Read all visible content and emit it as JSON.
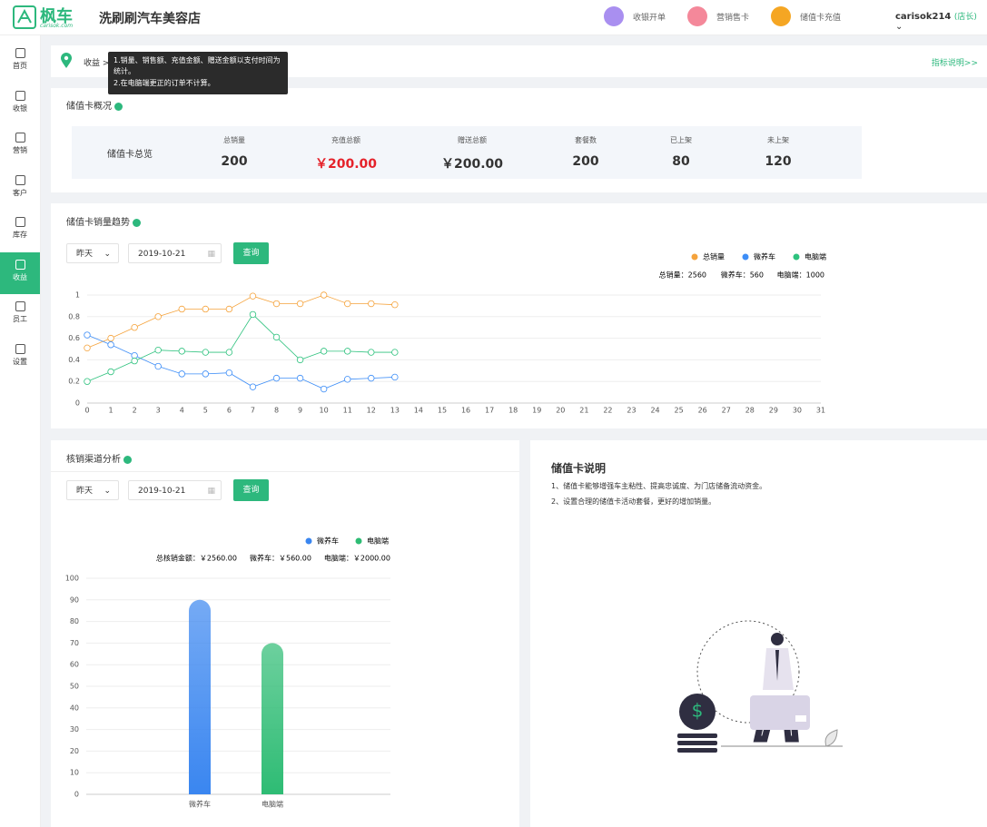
{
  "header": {
    "logo": "枫车",
    "logo_sub": "carisok.com",
    "store": "洗刷刷汽车美容店",
    "actions": [
      "收银开单",
      "营销售卡",
      "储值卡充值"
    ],
    "user": "carisok214",
    "role": "(店长)"
  },
  "sidebar": [
    "首页",
    "收银",
    "营销",
    "客户",
    "库存",
    "收益",
    "员工",
    "设置"
  ],
  "breadcrumb": {
    "current": "收益",
    "separator": ">",
    "tooltip": [
      "1.销量、销售额、充值金额、赠送金额以支付时间为",
      "统计。",
      "2.在电脑端更正的订单不计算。"
    ],
    "link": "指标说明>>"
  },
  "overview": {
    "title": "储值卡概况",
    "label": "储值卡总览",
    "stats": [
      {
        "label": "总销量",
        "value": "200"
      },
      {
        "label": "充值总额",
        "value": "￥200.00"
      },
      {
        "label": "赠送总额",
        "value": "￥200.00"
      },
      {
        "label": "套餐数",
        "value": "200"
      },
      {
        "label": "已上架",
        "value": "80"
      },
      {
        "label": "未上架",
        "value": "120"
      }
    ]
  },
  "trend": {
    "title": "储值卡销量趋势",
    "filter": "昨天",
    "date": "2019-10-21",
    "button": "查询"
  },
  "channel": {
    "title": "核销渠道分析",
    "filter": "昨天",
    "date": "2019-10-21",
    "button": "查询"
  },
  "info": {
    "title": "储值卡说明",
    "lines": [
      "1、储值卡能够增强车主粘性、提高忠诚度、为门店储备流动资金。",
      "2、设置合理的储值卡活动套餐，更好的增加销量。"
    ]
  },
  "chart_data": [
    {
      "type": "line",
      "x": [
        0,
        1,
        2,
        3,
        4,
        5,
        6,
        7,
        8,
        9,
        10,
        11,
        12,
        13,
        14,
        15,
        16,
        17,
        18,
        19,
        20,
        21,
        22,
        23,
        24,
        25,
        26,
        27,
        28,
        29,
        30,
        31
      ],
      "series": [
        {
          "name": "总销量",
          "color": "#f5a33c",
          "values": [
            0.51,
            0.6,
            0.7,
            0.8,
            0.87,
            0.87,
            0.87,
            0.99,
            0.92,
            0.92,
            1.0,
            0.92,
            0.92,
            0.91,
            null,
            null,
            null,
            null,
            null,
            null,
            null,
            null,
            null,
            null,
            null,
            null,
            null,
            null,
            null,
            null,
            null,
            null
          ]
        },
        {
          "name": "微养车",
          "color": "#3e8ef7",
          "values": [
            0.63,
            0.54,
            0.44,
            0.34,
            0.27,
            0.27,
            0.28,
            0.15,
            0.23,
            0.23,
            0.13,
            0.22,
            0.23,
            0.24,
            null,
            null,
            null,
            null,
            null,
            null,
            null,
            null,
            null,
            null,
            null,
            null,
            null,
            null,
            null,
            null,
            null,
            null
          ]
        },
        {
          "name": "电脑端",
          "color": "#2ec27e",
          "values": [
            0.2,
            0.29,
            0.39,
            0.49,
            0.48,
            0.47,
            0.47,
            0.82,
            0.61,
            0.4,
            0.48,
            0.48,
            0.47,
            0.47,
            null,
            null,
            null,
            null,
            null,
            null,
            null,
            null,
            null,
            null,
            null,
            null,
            null,
            null,
            null,
            null,
            null,
            null
          ]
        }
      ],
      "xlim": [
        0,
        31
      ],
      "ylim": [
        0,
        1
      ],
      "yticks": [
        0,
        0.2,
        0.4,
        0.6,
        0.8,
        1
      ],
      "grid": true,
      "legend": "top-right",
      "annotations": [
        "总销量：2560",
        "微养车：560",
        "电脑端：1000"
      ]
    },
    {
      "type": "bar",
      "categories": [
        "微养车",
        "电脑端"
      ],
      "values": [
        90,
        70
      ],
      "colors": [
        "#3a86f0",
        "#2ebc74"
      ],
      "legend": [
        "微养车",
        "电脑端"
      ],
      "ylim": [
        0,
        100
      ],
      "yticks": [
        0,
        10,
        20,
        30,
        40,
        50,
        60,
        70,
        80,
        90,
        100
      ],
      "grid": true,
      "annotations": [
        "总核销金额：￥2560.00",
        "微养车：￥560.00",
        "电脑端：￥2000.00"
      ]
    }
  ]
}
